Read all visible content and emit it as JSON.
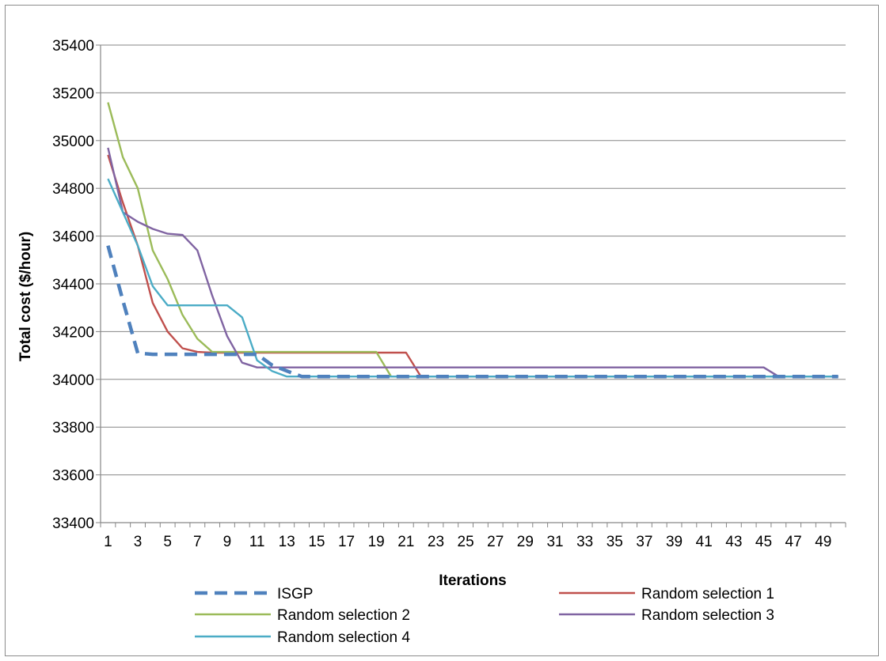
{
  "chart_data": {
    "type": "line",
    "xlabel": "Iterations",
    "ylabel": "Total cost ($/hour)",
    "ylim": [
      33400,
      35400
    ],
    "yticks": [
      33400,
      33600,
      33800,
      34000,
      34200,
      34400,
      34600,
      34800,
      35000,
      35200,
      35400
    ],
    "xlim": [
      1,
      50
    ],
    "xtick_labels": [
      "1",
      "3",
      "5",
      "7",
      "9",
      "11",
      "13",
      "15",
      "17",
      "19",
      "21",
      "23",
      "25",
      "27",
      "29",
      "31",
      "33",
      "35",
      "37",
      "39",
      "41",
      "43",
      "45",
      "47",
      "49"
    ],
    "grid": "horizontal",
    "legend_position": "bottom",
    "series": [
      {
        "name": "ISGP",
        "color": "#4f81bd",
        "style": "dashed",
        "x": [
          1,
          2,
          3,
          4,
          5,
          6,
          7,
          8,
          9,
          10,
          11,
          12,
          13,
          14,
          50
        ],
        "y": [
          34560,
          34330,
          34110,
          34105,
          34105,
          34105,
          34105,
          34105,
          34105,
          34105,
          34105,
          34060,
          34035,
          34012,
          34012
        ]
      },
      {
        "name": "Random selection 1",
        "color": "#c0504d",
        "style": "solid",
        "x": [
          1,
          2,
          3,
          4,
          5,
          6,
          7,
          8,
          9,
          10,
          11,
          12,
          13,
          14,
          15,
          16,
          17,
          18,
          19,
          20,
          21,
          22,
          50
        ],
        "y": [
          34940,
          34740,
          34560,
          34320,
          34200,
          34130,
          34115,
          34112,
          34112,
          34112,
          34112,
          34112,
          34112,
          34112,
          34112,
          34112,
          34112,
          34112,
          34112,
          34112,
          34112,
          34012,
          34012
        ]
      },
      {
        "name": "Random selection 2",
        "color": "#9bbb59",
        "style": "solid",
        "x": [
          1,
          2,
          3,
          4,
          5,
          6,
          7,
          8,
          9,
          10,
          11,
          12,
          13,
          14,
          15,
          16,
          17,
          18,
          19,
          20,
          50
        ],
        "y": [
          35160,
          34930,
          34800,
          34540,
          34420,
          34270,
          34170,
          34115,
          34115,
          34115,
          34115,
          34115,
          34115,
          34115,
          34115,
          34115,
          34115,
          34115,
          34115,
          34012,
          34012
        ]
      },
      {
        "name": "Random selection 3",
        "color": "#8064a2",
        "style": "solid",
        "x": [
          1,
          2,
          3,
          4,
          5,
          6,
          7,
          8,
          9,
          10,
          11,
          12,
          13,
          45,
          46,
          50
        ],
        "y": [
          34970,
          34700,
          34660,
          34630,
          34610,
          34605,
          34540,
          34350,
          34180,
          34070,
          34050,
          34050,
          34050,
          34050,
          34012,
          34012
        ]
      },
      {
        "name": "Random selection 4",
        "color": "#4bacc6",
        "style": "solid",
        "x": [
          1,
          2,
          3,
          4,
          5,
          6,
          7,
          8,
          9,
          10,
          11,
          12,
          13,
          50
        ],
        "y": [
          34840,
          34700,
          34560,
          34390,
          34310,
          34310,
          34310,
          34310,
          34310,
          34260,
          34080,
          34035,
          34012,
          34012
        ]
      }
    ]
  }
}
